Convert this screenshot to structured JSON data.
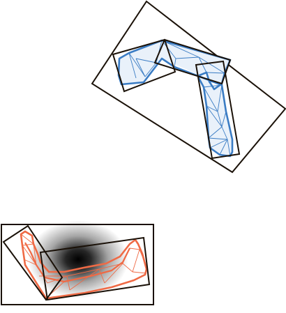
{
  "figure": {
    "colors": {
      "box": "#1a1108",
      "upper_mesh": "#3a7cc4",
      "upper_fill": "#e9f1fa",
      "lower_mesh": "#ef6a45",
      "blob": "#000000",
      "background": "#ffffff"
    }
  }
}
